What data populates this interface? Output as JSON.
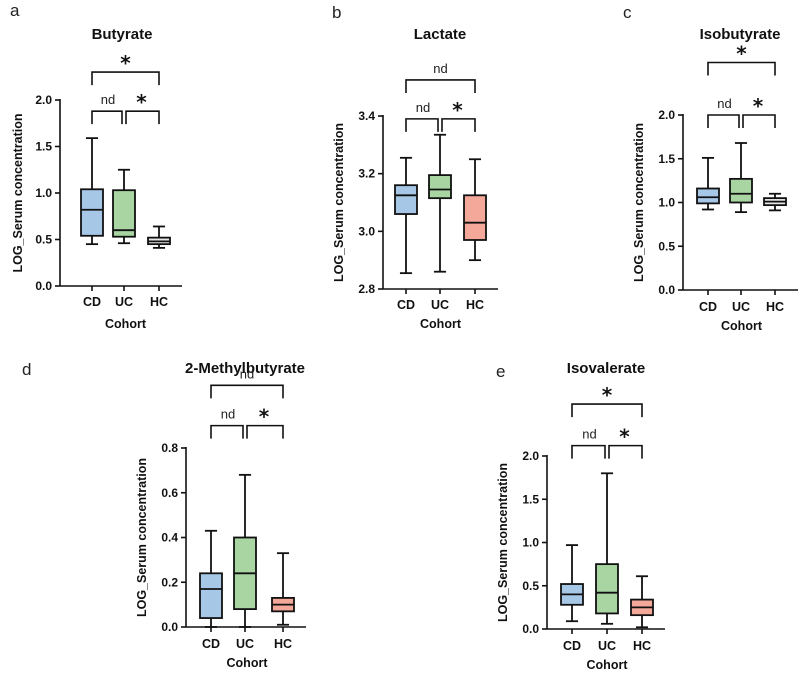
{
  "chart_data": [
    {
      "panel": "a",
      "type": "box",
      "title": "Butyrate",
      "ylabel": "LOG_Serum concentration",
      "xlabel": "Cohort",
      "ylim": [
        0,
        2.0
      ],
      "yticks": [
        "0.0",
        "0.5",
        "1.0",
        "1.5",
        "2.0"
      ],
      "ytick_values": [
        0,
        0.5,
        1.0,
        1.5,
        2.0
      ],
      "categories": [
        "CD",
        "UC",
        "HC"
      ],
      "colors": [
        "#a7c7e7",
        "#a8d5a2",
        "#e8e8e8"
      ],
      "boxes": [
        {
          "min": 0.45,
          "q1": 0.54,
          "median": 0.82,
          "q3": 1.04,
          "max": 1.59
        },
        {
          "min": 0.46,
          "q1": 0.53,
          "median": 0.6,
          "q3": 1.03,
          "max": 1.25
        },
        {
          "min": 0.41,
          "q1": 0.45,
          "median": 0.48,
          "q3": 0.52,
          "max": 0.64
        }
      ],
      "comparisons": [
        {
          "from": 0,
          "to": 1,
          "label": "nd",
          "level": 1.88
        },
        {
          "from": 1,
          "to": 2,
          "label": "*",
          "level": 1.88
        },
        {
          "from": 0,
          "to": 2,
          "label": "*",
          "level": 2.3
        }
      ]
    },
    {
      "panel": "b",
      "type": "box",
      "title": "Lactate",
      "ylabel": "LOG_Serum concentration",
      "xlabel": "Cohort",
      "ylim": [
        2.8,
        3.4
      ],
      "yticks": [
        "2.8",
        "3.0",
        "3.2",
        "3.4"
      ],
      "ytick_values": [
        2.8,
        3.0,
        3.2,
        3.4
      ],
      "categories": [
        "CD",
        "UC",
        "HC"
      ],
      "colors": [
        "#a7c7e7",
        "#a8d5a2",
        "#f4a89a"
      ],
      "boxes": [
        {
          "min": 2.855,
          "q1": 3.06,
          "median": 3.125,
          "q3": 3.16,
          "max": 3.255
        },
        {
          "min": 2.86,
          "q1": 3.115,
          "median": 3.145,
          "q3": 3.195,
          "max": 3.335
        },
        {
          "min": 2.9,
          "q1": 2.97,
          "median": 3.03,
          "q3": 3.125,
          "max": 3.25
        }
      ],
      "comparisons": [
        {
          "from": 0,
          "to": 1,
          "label": "nd",
          "level": 3.39
        },
        {
          "from": 1,
          "to": 2,
          "label": "*",
          "level": 3.39
        },
        {
          "from": 0,
          "to": 2,
          "label": "nd",
          "level": 3.525
        }
      ]
    },
    {
      "panel": "c",
      "type": "box",
      "title": "Isobutyrate",
      "ylabel": "LOG_Serum concentration",
      "xlabel": "Cohort",
      "ylim": [
        0,
        2.0
      ],
      "yticks": [
        "0.0",
        "0.5",
        "1.0",
        "1.5",
        "2.0"
      ],
      "ytick_values": [
        0,
        0.5,
        1.0,
        1.5,
        2.0
      ],
      "categories": [
        "CD",
        "UC",
        "HC"
      ],
      "colors": [
        "#a7c7e7",
        "#a8d5a2",
        "#e8e8e8"
      ],
      "boxes": [
        {
          "min": 0.92,
          "q1": 0.99,
          "median": 1.06,
          "q3": 1.16,
          "max": 1.51
        },
        {
          "min": 0.89,
          "q1": 1.0,
          "median": 1.1,
          "q3": 1.27,
          "max": 1.68
        },
        {
          "min": 0.91,
          "q1": 0.97,
          "median": 1.01,
          "q3": 1.05,
          "max": 1.1
        }
      ],
      "comparisons": [
        {
          "from": 0,
          "to": 1,
          "label": "nd",
          "level": 2.0
        },
        {
          "from": 1,
          "to": 2,
          "label": "*",
          "level": 2.0
        },
        {
          "from": 0,
          "to": 2,
          "label": "*",
          "level": 2.6
        }
      ]
    },
    {
      "panel": "d",
      "type": "box",
      "title": "2-Methylbutyrate",
      "ylabel": "LOG_Serum concentration",
      "xlabel": "Cohort",
      "ylim": [
        0,
        0.8
      ],
      "yticks": [
        "0.0",
        "0.2",
        "0.4",
        "0.6",
        "0.8"
      ],
      "ytick_values": [
        0,
        0.2,
        0.4,
        0.6,
        0.8
      ],
      "categories": [
        "CD",
        "UC",
        "HC"
      ],
      "colors": [
        "#a7c7e7",
        "#a8d5a2",
        "#f4a89a"
      ],
      "boxes": [
        {
          "min": 0.0,
          "q1": 0.04,
          "median": 0.17,
          "q3": 0.24,
          "max": 0.43
        },
        {
          "min": 0.0,
          "q1": 0.08,
          "median": 0.24,
          "q3": 0.4,
          "max": 0.68
        },
        {
          "min": 0.01,
          "q1": 0.07,
          "median": 0.1,
          "q3": 0.13,
          "max": 0.33
        }
      ],
      "comparisons": [
        {
          "from": 0,
          "to": 1,
          "label": "nd",
          "level": 0.9
        },
        {
          "from": 1,
          "to": 2,
          "label": "*",
          "level": 0.9
        },
        {
          "from": 0,
          "to": 2,
          "label": "nd",
          "level": 1.08
        }
      ]
    },
    {
      "panel": "e",
      "type": "box",
      "title": "Isovalerate",
      "ylabel": "LOG_Serum concentration",
      "xlabel": "Cohort",
      "ylim": [
        0,
        2.0
      ],
      "yticks": [
        "0.0",
        "0.5",
        "1.0",
        "1.5",
        "2.0"
      ],
      "ytick_values": [
        0,
        0.5,
        1.0,
        1.5,
        2.0
      ],
      "categories": [
        "CD",
        "UC",
        "HC"
      ],
      "colors": [
        "#a7c7e7",
        "#a8d5a2",
        "#f4a89a"
      ],
      "boxes": [
        {
          "min": 0.09,
          "q1": 0.28,
          "median": 0.4,
          "q3": 0.52,
          "max": 0.97
        },
        {
          "min": 0.06,
          "q1": 0.18,
          "median": 0.42,
          "q3": 0.75,
          "max": 1.8
        },
        {
          "min": 0.02,
          "q1": 0.16,
          "median": 0.25,
          "q3": 0.34,
          "max": 0.61
        }
      ],
      "comparisons": [
        {
          "from": 0,
          "to": 1,
          "label": "nd",
          "level": 2.12
        },
        {
          "from": 1,
          "to": 2,
          "label": "*",
          "level": 2.12
        },
        {
          "from": 0,
          "to": 2,
          "label": "*",
          "level": 2.6
        }
      ]
    }
  ]
}
